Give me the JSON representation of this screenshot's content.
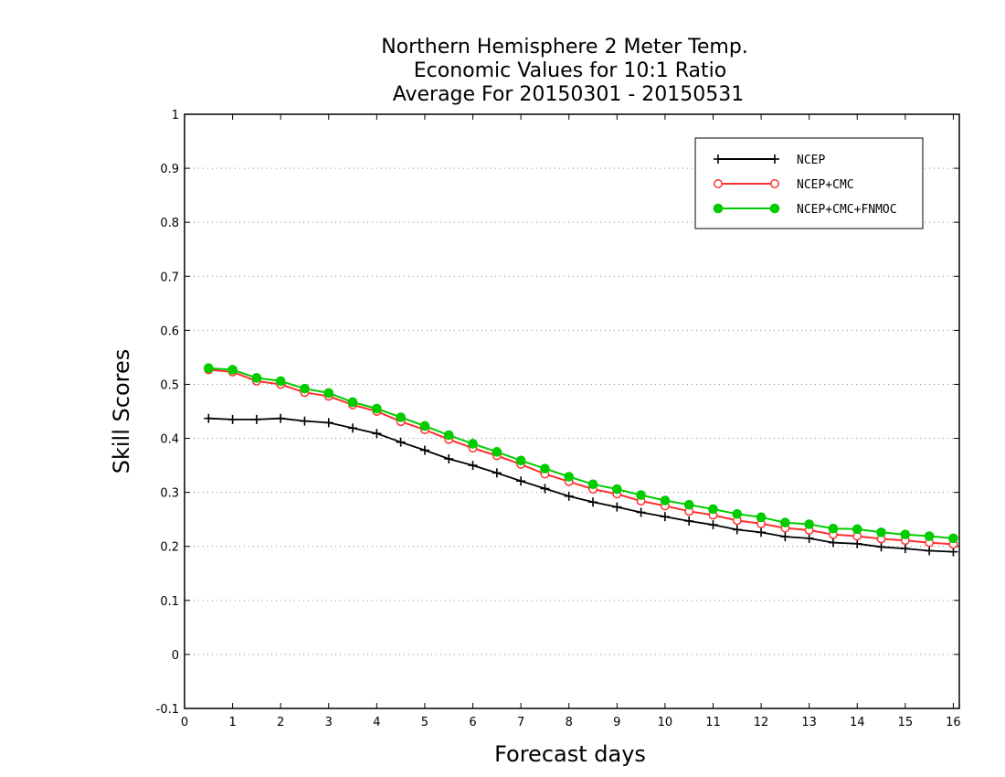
{
  "chart_data": {
    "type": "line",
    "title_lines": [
      "Northern Hemisphere 2 Meter Temp.",
      "Economic Values for 10:1 Ratio",
      "Average For 20150301 - 20150531"
    ],
    "xlabel": "Forecast days",
    "ylabel": "Skill Scores",
    "xlim": [
      0,
      16.125
    ],
    "ylim": [
      -0.1,
      1
    ],
    "xticks": [
      0,
      1,
      2,
      3,
      4,
      5,
      6,
      7,
      8,
      9,
      10,
      11,
      12,
      13,
      14,
      15,
      16
    ],
    "yticks": [
      -0.1,
      0,
      0.1,
      0.2,
      0.3,
      0.4,
      0.5,
      0.6,
      0.7,
      0.8,
      0.9,
      1
    ],
    "ytick_labels": [
      "-0.1",
      "0",
      "0.1",
      "0.2",
      "0.3",
      "0.4",
      "0.5",
      "0.6",
      "0.7",
      "0.8",
      "0.9",
      "1"
    ],
    "grid": "horizontal dotted",
    "legend_position": "top-right",
    "x": [
      0.5,
      1,
      1.5,
      2,
      2.5,
      3,
      3.5,
      4,
      4.5,
      5,
      5.5,
      6,
      6.5,
      7,
      7.5,
      8,
      8.5,
      9,
      9.5,
      10,
      10.5,
      11,
      11.5,
      12,
      12.5,
      13,
      13.5,
      14,
      14.5,
      15,
      15.5,
      16
    ],
    "series": [
      {
        "name": "NCEP",
        "color": "#000000",
        "marker": "plus",
        "values": [
          0.437,
          0.435,
          0.435,
          0.437,
          0.432,
          0.429,
          0.419,
          0.409,
          0.393,
          0.378,
          0.362,
          0.35,
          0.336,
          0.321,
          0.307,
          0.293,
          0.282,
          0.273,
          0.263,
          0.255,
          0.247,
          0.24,
          0.231,
          0.226,
          0.218,
          0.215,
          0.207,
          0.205,
          0.199,
          0.196,
          0.192,
          0.19
        ]
      },
      {
        "name": "NCEP+CMC",
        "color": "#ff3030",
        "marker": "open-circle",
        "values": [
          0.527,
          0.523,
          0.506,
          0.5,
          0.485,
          0.478,
          0.462,
          0.45,
          0.431,
          0.416,
          0.398,
          0.382,
          0.368,
          0.352,
          0.334,
          0.32,
          0.306,
          0.297,
          0.284,
          0.275,
          0.265,
          0.258,
          0.248,
          0.242,
          0.234,
          0.23,
          0.222,
          0.219,
          0.214,
          0.211,
          0.207,
          0.204
        ]
      },
      {
        "name": "NCEP+CMC+FNMOC",
        "color": "#00cc00",
        "marker": "filled-circle",
        "values": [
          0.53,
          0.527,
          0.512,
          0.506,
          0.492,
          0.484,
          0.467,
          0.455,
          0.439,
          0.423,
          0.406,
          0.39,
          0.375,
          0.359,
          0.344,
          0.329,
          0.315,
          0.306,
          0.295,
          0.285,
          0.277,
          0.269,
          0.26,
          0.254,
          0.244,
          0.241,
          0.233,
          0.232,
          0.226,
          0.222,
          0.219,
          0.215
        ]
      }
    ]
  }
}
